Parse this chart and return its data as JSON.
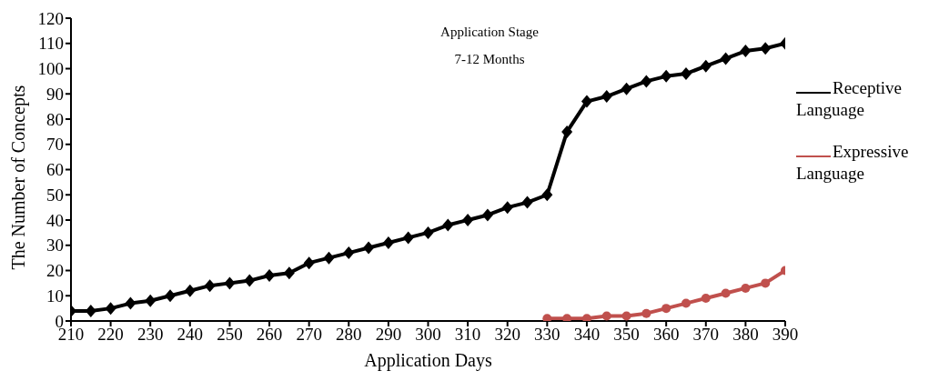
{
  "chart_data": {
    "type": "line",
    "title": "Application Stage",
    "subtitle": "7-12 Months",
    "xlabel": "Application Days",
    "ylabel": "The Number of Concepts",
    "x": [
      210,
      215,
      220,
      225,
      230,
      235,
      240,
      245,
      250,
      255,
      260,
      265,
      270,
      275,
      280,
      285,
      290,
      295,
      300,
      305,
      310,
      315,
      320,
      325,
      330,
      335,
      340,
      345,
      350,
      355,
      360,
      365,
      370,
      375,
      380,
      385,
      390
    ],
    "series": [
      {
        "name": "Receptive Language",
        "color": "#000000",
        "marker": "diamond",
        "values": [
          4,
          4,
          5,
          7,
          8,
          10,
          12,
          14,
          15,
          16,
          18,
          19,
          23,
          25,
          27,
          29,
          31,
          33,
          35,
          38,
          40,
          42,
          45,
          47,
          50,
          75,
          87,
          89,
          92,
          95,
          97,
          98,
          101,
          104,
          107,
          108,
          110
        ]
      },
      {
        "name": "Expressive Language",
        "color": "#c0504d",
        "marker": "circle",
        "x": [
          330,
          335,
          340,
          345,
          350,
          355,
          360,
          365,
          370,
          375,
          380,
          385,
          390
        ],
        "values": [
          1,
          1,
          1,
          2,
          2,
          3,
          5,
          7,
          9,
          11,
          13,
          15,
          20
        ]
      }
    ],
    "xlim": [
      210,
      390
    ],
    "xticks": [
      210,
      220,
      230,
      240,
      250,
      260,
      270,
      280,
      290,
      300,
      310,
      320,
      330,
      340,
      350,
      360,
      370,
      380,
      390
    ],
    "ylim": [
      0,
      120
    ],
    "yticks": [
      0,
      10,
      20,
      30,
      40,
      50,
      60,
      70,
      80,
      90,
      100,
      110,
      120
    ],
    "grid": false,
    "legend": "right",
    "line_style": "solid"
  }
}
